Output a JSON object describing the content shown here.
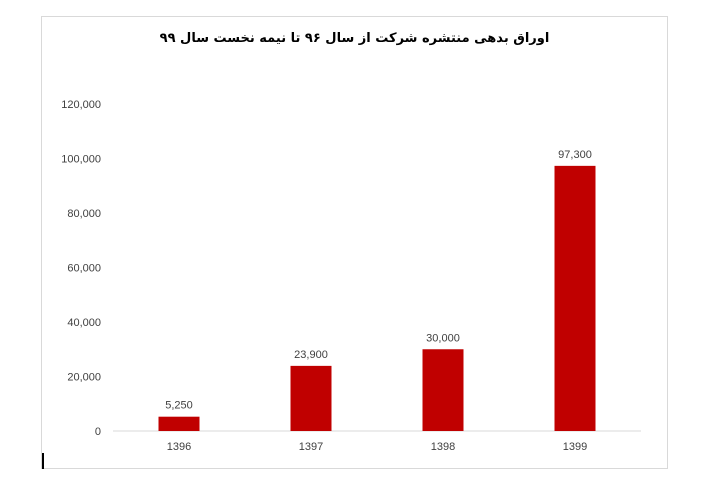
{
  "chart_data": {
    "type": "bar",
    "title": "اوراق بدهی منتشره شرکت از سال ۹۶ تا نیمه نخست سال ۹۹",
    "categories": [
      "1396",
      "1397",
      "1398",
      "1399"
    ],
    "values": [
      5250,
      23900,
      30000,
      97300
    ],
    "value_labels": [
      "5,250",
      "23,900",
      "30,000",
      "97,300"
    ],
    "xlabel": "",
    "ylabel": "",
    "ylim": [
      0,
      120000
    ],
    "y_ticks": [
      0,
      20000,
      40000,
      60000,
      80000,
      100000,
      120000
    ],
    "y_tick_labels": [
      "0",
      "20,000",
      "40,000",
      "60,000",
      "80,000",
      "100,000",
      "120,000"
    ],
    "grid": false,
    "legend": "none",
    "colors": {
      "bar": "#c00000",
      "axis": "#d9d9d9",
      "text": "#404040"
    }
  }
}
